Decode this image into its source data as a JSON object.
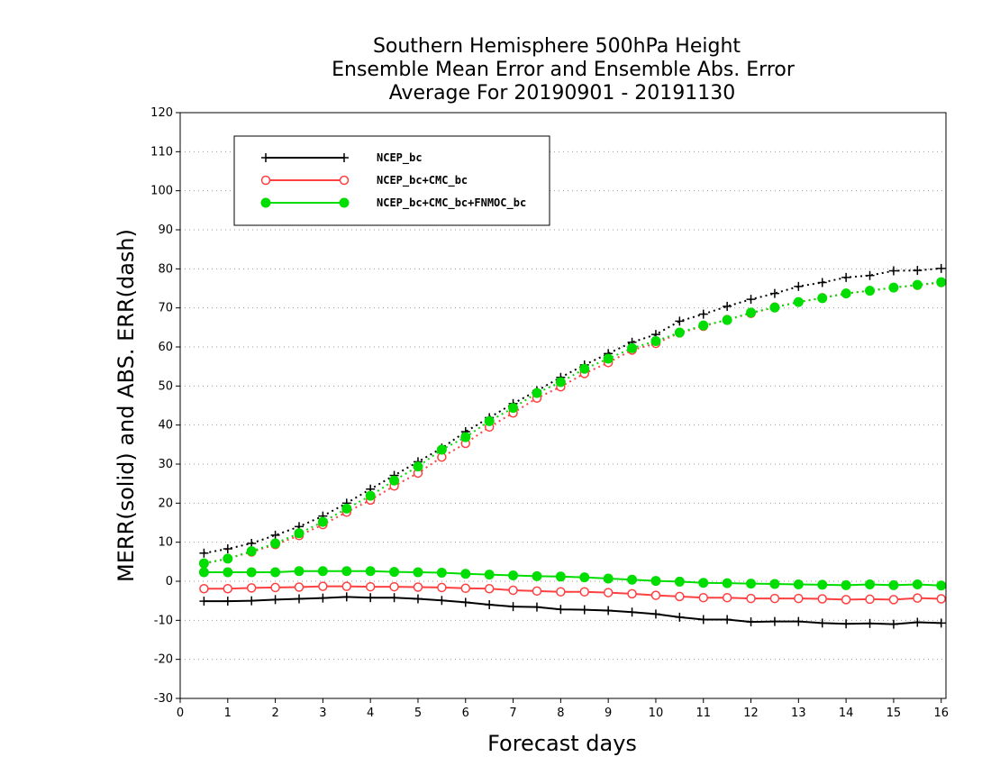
{
  "chart_data": {
    "type": "line",
    "title": [
      "Southern Hemisphere 500hPa Height",
      "Ensemble Mean Error and Ensemble Abs. Error",
      "Average For 20190901 - 20191130"
    ],
    "xlabel": "Forecast days",
    "ylabel": "MERR(solid) and ABS. ERR(dash)",
    "xlim": [
      0,
      16.1
    ],
    "ylim": [
      -30,
      120
    ],
    "x_ticks": [
      0,
      1,
      2,
      3,
      4,
      5,
      6,
      7,
      8,
      9,
      10,
      11,
      12,
      13,
      14,
      15,
      16
    ],
    "y_ticks": [
      -30,
      -20,
      -10,
      0,
      10,
      20,
      30,
      40,
      50,
      60,
      70,
      80,
      90,
      100,
      110,
      120
    ],
    "grid": "horizontal-dotted",
    "legend_position": "top-left",
    "x": [
      0.5,
      1,
      1.5,
      2,
      2.5,
      3,
      3.5,
      4,
      4.5,
      5,
      5.5,
      6,
      6.5,
      7,
      7.5,
      8,
      8.5,
      9,
      9.5,
      10,
      10.5,
      11,
      11.5,
      12,
      12.5,
      13,
      13.5,
      14,
      14.5,
      15,
      15.5,
      16
    ],
    "series": [
      {
        "name": "NCEP_bc",
        "color": "#000000",
        "marker": "plus",
        "merr": [
          -5.1,
          -5.1,
          -5.0,
          -4.7,
          -4.5,
          -4.3,
          -4.0,
          -4.2,
          -4.2,
          -4.5,
          -4.9,
          -5.4,
          -6.0,
          -6.5,
          -6.6,
          -7.2,
          -7.3,
          -7.5,
          -7.9,
          -8.4,
          -9.2,
          -9.8,
          -9.8,
          -10.4,
          -10.3,
          -10.3,
          -10.7,
          -10.9,
          -10.8,
          -11.0,
          -10.5,
          -10.7
        ],
        "abs_err": [
          7.2,
          8.3,
          9.7,
          11.8,
          14.0,
          16.7,
          20.0,
          23.6,
          27.1,
          30.6,
          34.1,
          38.3,
          41.9,
          45.5,
          48.8,
          52.2,
          55.4,
          58.3,
          61.2,
          63.2,
          66.6,
          68.4,
          70.4,
          72.2,
          73.7,
          75.5,
          76.5,
          77.8,
          78.3,
          79.5,
          79.6,
          80.1
        ]
      },
      {
        "name": "NCEP_bc+CMC_bc",
        "color": "#ff4040",
        "marker": "circle-open",
        "merr": [
          -1.9,
          -1.9,
          -1.7,
          -1.6,
          -1.5,
          -1.3,
          -1.3,
          -1.4,
          -1.4,
          -1.5,
          -1.6,
          -1.8,
          -1.9,
          -2.3,
          -2.5,
          -2.7,
          -2.7,
          -2.9,
          -3.2,
          -3.6,
          -3.9,
          -4.2,
          -4.2,
          -4.4,
          -4.4,
          -4.4,
          -4.5,
          -4.7,
          -4.6,
          -4.7,
          -4.3,
          -4.5
        ],
        "abs_err": [
          4.5,
          5.8,
          7.5,
          9.4,
          11.7,
          14.5,
          17.7,
          20.8,
          24.4,
          27.7,
          31.8,
          35.3,
          39.5,
          43.1,
          46.9,
          49.8,
          53.2,
          56.0,
          59.2,
          60.9,
          63.6,
          65.3,
          67.0,
          68.6,
          70.2,
          71.5,
          72.6,
          73.7,
          74.4,
          75.2,
          75.8,
          76.5
        ]
      },
      {
        "name": "NCEP_bc+CMC_bc+FNMOC_bc",
        "color": "#00dd00",
        "marker": "circle-filled",
        "merr": [
          2.3,
          2.3,
          2.3,
          2.3,
          2.6,
          2.6,
          2.6,
          2.6,
          2.4,
          2.3,
          2.2,
          1.9,
          1.7,
          1.5,
          1.3,
          1.2,
          1.0,
          0.7,
          0.4,
          0.1,
          -0.1,
          -0.4,
          -0.5,
          -0.6,
          -0.7,
          -0.8,
          -0.9,
          -1.0,
          -0.8,
          -1.0,
          -0.8,
          -1.1
        ],
        "abs_err": [
          4.6,
          5.8,
          7.7,
          9.7,
          12.3,
          15.2,
          18.6,
          21.9,
          25.8,
          29.4,
          33.7,
          36.9,
          41.0,
          44.4,
          48.2,
          51.0,
          54.4,
          57.0,
          59.7,
          61.5,
          63.7,
          65.5,
          66.9,
          68.8,
          70.1,
          71.5,
          72.5,
          73.7,
          74.4,
          75.2,
          75.9,
          76.6
        ]
      }
    ]
  }
}
